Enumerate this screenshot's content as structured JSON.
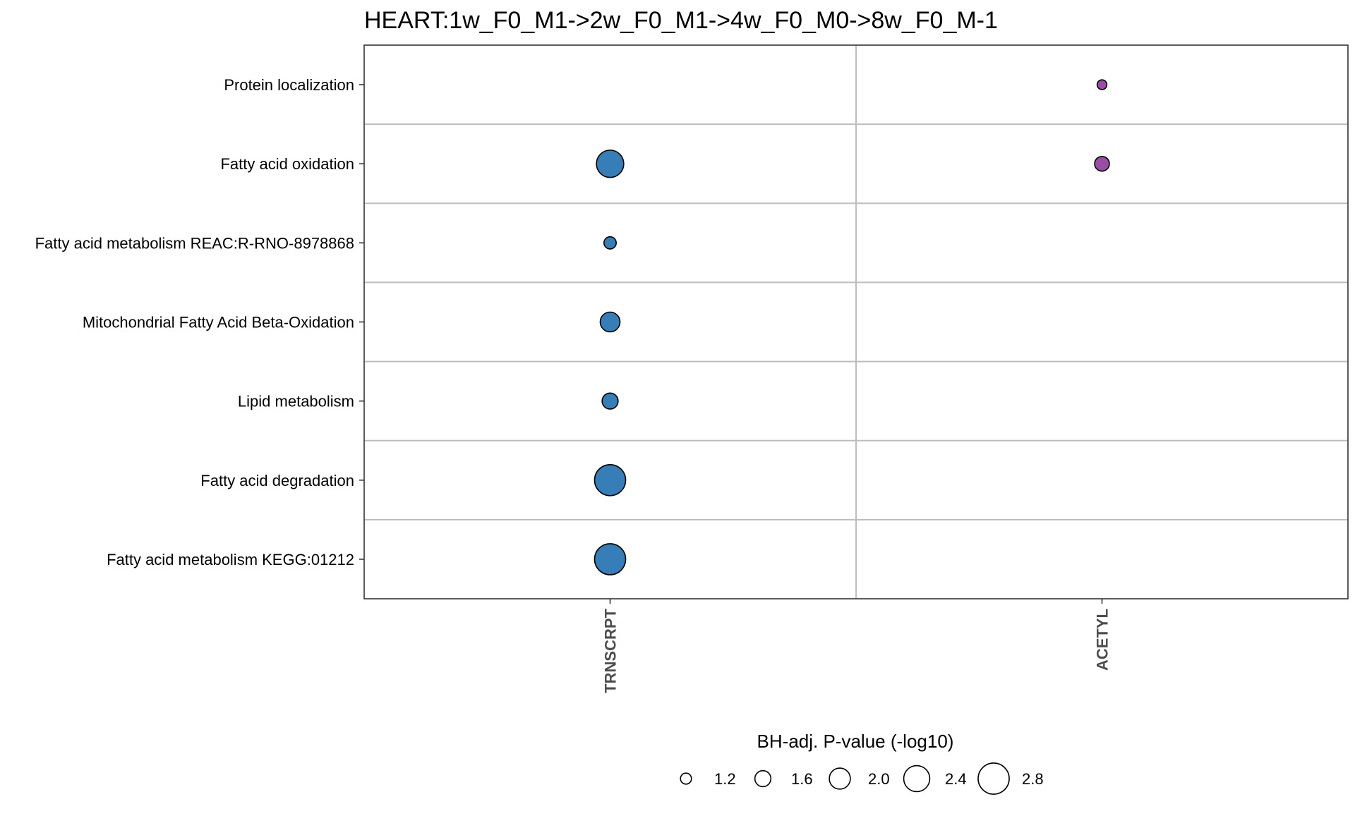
{
  "chart_data": {
    "type": "scatter",
    "title": "HEART:1w_F0_M1->2w_F0_M1->4w_F0_M0->8w_F0_M-1",
    "x_categories": [
      "TRNSCRPT",
      "ACETYL"
    ],
    "y_categories": [
      "Protein localization",
      "Fatty acid oxidation",
      "Fatty acid metabolism REAC:R-RNO-8978868",
      "Mitochondrial Fatty Acid Beta-Oxidation",
      "Lipid metabolism",
      "Fatty acid degradation",
      "Fatty acid metabolism KEGG:01212"
    ],
    "points": [
      {
        "x": "ACETYL",
        "y": "Protein localization",
        "size": 1.1,
        "color": "#984ea3"
      },
      {
        "x": "TRNSCRPT",
        "y": "Fatty acid oxidation",
        "size": 2.5,
        "color": "#377eb8"
      },
      {
        "x": "ACETYL",
        "y": "Fatty acid oxidation",
        "size": 1.5,
        "color": "#984ea3"
      },
      {
        "x": "TRNSCRPT",
        "y": "Fatty acid metabolism REAC:R-RNO-8978868",
        "size": 1.3,
        "color": "#377eb8"
      },
      {
        "x": "TRNSCRPT",
        "y": "Mitochondrial Fatty Acid Beta-Oxidation",
        "size": 1.9,
        "color": "#377eb8"
      },
      {
        "x": "TRNSCRPT",
        "y": "Lipid metabolism",
        "size": 1.6,
        "color": "#377eb8"
      },
      {
        "x": "TRNSCRPT",
        "y": "Fatty acid degradation",
        "size": 2.8,
        "color": "#377eb8"
      },
      {
        "x": "TRNSCRPT",
        "y": "Fatty acid metabolism KEGG:01212",
        "size": 2.8,
        "color": "#377eb8"
      }
    ],
    "size_legend": {
      "title": "BH-adj. P-value (-log10)",
      "values": [
        1.2,
        1.6,
        2.0,
        2.4,
        2.8
      ],
      "labels": [
        "1.2",
        "1.6",
        "2.0",
        "2.4",
        "2.8"
      ]
    },
    "grid": true,
    "legend_position": "bottom"
  }
}
